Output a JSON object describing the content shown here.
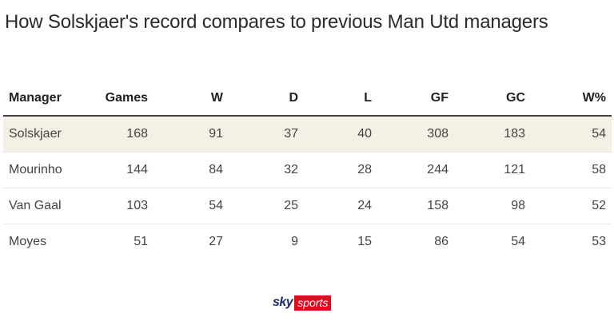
{
  "title": "How Solskjaer's record compares to previous Man Utd managers",
  "table": {
    "headers": [
      "Manager",
      "Games",
      "W",
      "D",
      "L",
      "GF",
      "GC",
      "W%"
    ],
    "rows": [
      [
        "Solskjaer",
        "168",
        "91",
        "37",
        "40",
        "308",
        "183",
        "54"
      ],
      [
        "Mourinho",
        "144",
        "84",
        "32",
        "28",
        "244",
        "121",
        "58"
      ],
      [
        "Van Gaal",
        "103",
        "54",
        "25",
        "24",
        "158",
        "98",
        "52"
      ],
      [
        "Moyes",
        "51",
        "27",
        "9",
        "15",
        "86",
        "54",
        "53"
      ]
    ],
    "highlight_row": 0,
    "highlight_color": "#f4f0e6"
  },
  "logo": {
    "sky": "sky",
    "sports": "sports",
    "brand_red": "#e10a1e",
    "brand_blue": "#1b2a6b"
  }
}
